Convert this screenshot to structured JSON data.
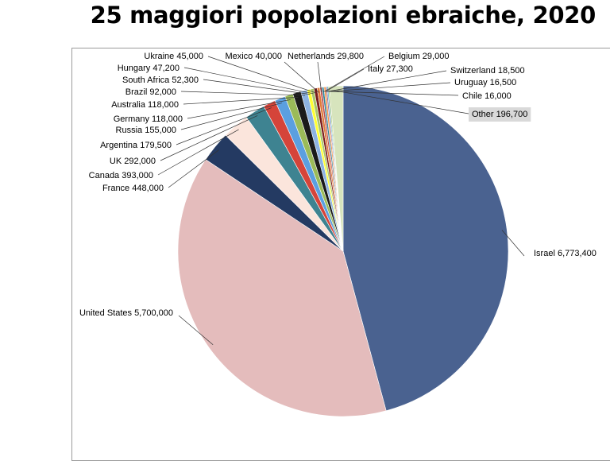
{
  "title": "25 maggiori popolazioni ebraiche, 2020",
  "chart_data": {
    "type": "pie",
    "title": "25 maggiori popolazioni ebraiche, 2020",
    "start_angle_deg": 0,
    "direction": "clockwise",
    "slices": [
      {
        "label": "Israel",
        "value": 6773400,
        "text": "Israel 6,773,400",
        "color": "#4a6290"
      },
      {
        "label": "United States",
        "value": 5700000,
        "text": "United States 5,700,000",
        "color": "#e4bcbc"
      },
      {
        "label": "France",
        "value": 448000,
        "text": "France 448,000",
        "color": "#243a62"
      },
      {
        "label": "Canada",
        "value": 393000,
        "text": "Canada 393,000",
        "color": "#fbe5dc"
      },
      {
        "label": "UK",
        "value": 292000,
        "text": "UK 292,000",
        "color": "#3e8391"
      },
      {
        "label": "Argentina",
        "value": 179500,
        "text": "Argentina 179,500",
        "color": "#d5443a"
      },
      {
        "label": "Russia",
        "value": 155000,
        "text": "Russia 155,000",
        "color": "#5b9fe0"
      },
      {
        "label": "Germany",
        "value": 118000,
        "text": "Germany 118,000",
        "color": "#9bbb59"
      },
      {
        "label": "Australia",
        "value": 118000,
        "text": "Australia 118,000",
        "color": "#1a1a1a"
      },
      {
        "label": "Brazil",
        "value": 92000,
        "text": "Brazil 92,000",
        "color": "#8db3e2"
      },
      {
        "label": "South Africa",
        "value": 52300,
        "text": "South Africa 52,300",
        "color": "#ffff33"
      },
      {
        "label": "Hungary",
        "value": 47200,
        "text": "Hungary 47,200",
        "color": "#a9c66a"
      },
      {
        "label": "Ukraine",
        "value": 45000,
        "text": "Ukraine 45,000",
        "color": "#7a1c1c"
      },
      {
        "label": "Mexico",
        "value": 40000,
        "text": "Mexico 40,000",
        "color": "#e07b39"
      },
      {
        "label": "Netherlands",
        "value": 29800,
        "text": "Netherlands 29,800",
        "color": "#c0504d"
      },
      {
        "label": "Belgium",
        "value": 29000,
        "text": "Belgium 29,000",
        "color": "#31849b"
      },
      {
        "label": "Italy",
        "value": 27300,
        "text": "Italy 27,300",
        "color": "#f79646"
      },
      {
        "label": "Switzerland",
        "value": 18500,
        "text": "Switzerland 18,500",
        "color": "#8064a2"
      },
      {
        "label": "Uruguay",
        "value": 16500,
        "text": "Uruguay 16,500",
        "color": "#4bacc6"
      },
      {
        "label": "Chile",
        "value": 16000,
        "text": "Chile 16,000",
        "color": "#9cb84c"
      },
      {
        "label": "Other",
        "value": 196700,
        "text": "Other 196,700",
        "color": "#d7e4bd"
      }
    ]
  }
}
